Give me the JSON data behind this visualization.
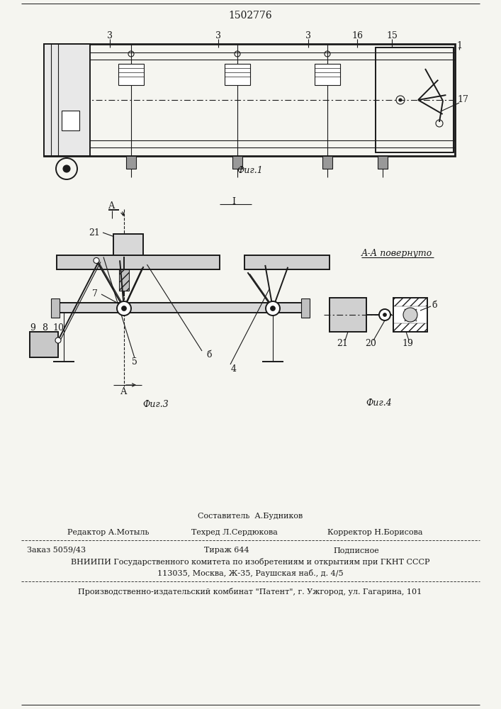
{
  "patent_number": "1502776",
  "bg": "#f5f5f0",
  "lc": "#1a1a1a",
  "fig1_caption": "Фиг.1",
  "fig3_caption": "Фиг.3",
  "fig4_caption": "Фиг.4",
  "fig4_title": "А-А повернуто",
  "footer": {
    "line1": "Составитель  А.Будников",
    "line2_left": "Редактор А.Мотыль",
    "line2_mid": "Техред Л.Сердюкова",
    "line2_right": "Корректор Н.Борисова",
    "line3_left": "Заказ 5059/43",
    "line3_mid": "Тираж 644",
    "line3_right": "Подписное",
    "line4": "ВНИИПИ Государственного комитета по изобретениям и открытиям при ГКНТ СССР",
    "line5": "113035, Москва, Ж-35, Раушская наб., д. 4/5",
    "line6": "Производственно-издательский комбинат \"Патент\", г. Ужгород, ул. Гагарина, 101"
  }
}
